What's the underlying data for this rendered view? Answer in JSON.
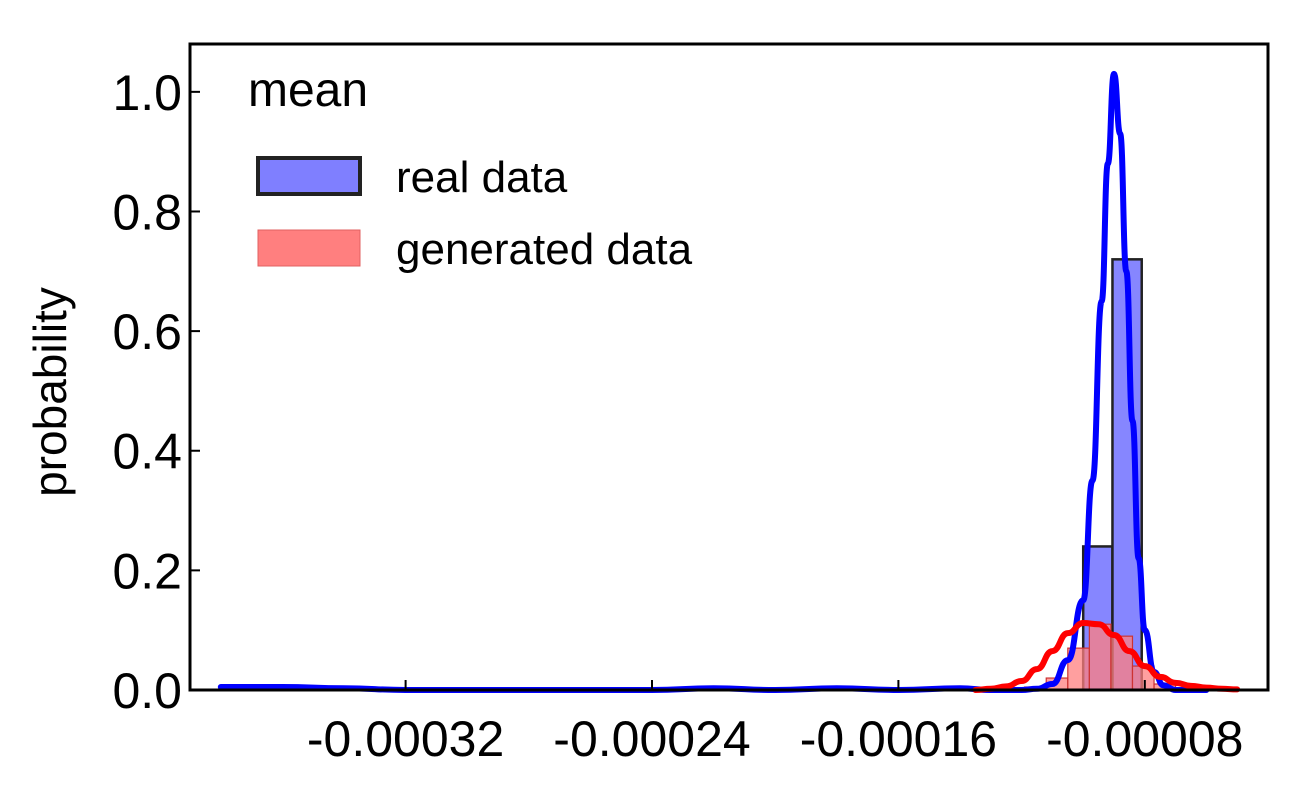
{
  "chart_data": {
    "type": "bar",
    "title": "",
    "xlabel": "",
    "ylabel": "probability",
    "xlim": [
      -0.00039,
      -4e-05
    ],
    "ylim": [
      0,
      1.08
    ],
    "xticks": [
      -0.00032,
      -0.00024,
      -0.00016,
      -8e-05
    ],
    "xtick_labels": [
      "-0.00032",
      "-0.00024",
      "-0.00016",
      "-0.00008"
    ],
    "yticks": [
      0.0,
      0.2,
      0.4,
      0.6,
      0.8,
      1.0
    ],
    "ytick_labels": [
      "0.0",
      "0.2",
      "0.4",
      "0.6",
      "0.8",
      "1.0"
    ],
    "grid": false,
    "legend": {
      "title": "mean",
      "placement": "top-left",
      "entries": [
        "real data",
        "generated data"
      ]
    },
    "bin_width": 9.5e-06,
    "series": [
      {
        "name": "real data",
        "kind": "histogram",
        "color": "#7f7fff",
        "edge": "#222222",
        "bins": [
          {
            "x0": -0.0001,
            "x1": -9.05e-05,
            "value": 0.24
          },
          {
            "x0": -9.05e-05,
            "x1": -8.1e-05,
            "value": 0.72
          }
        ]
      },
      {
        "name": "generated data",
        "kind": "histogram",
        "color": "#ff7f7f",
        "edge": "#cc3333",
        "bins": [
          {
            "x0": -0.000119,
            "x1": -0.000112,
            "value": 0.005
          },
          {
            "x0": -0.000112,
            "x1": -0.000105,
            "value": 0.02
          },
          {
            "x0": -0.000105,
            "x1": -9.8e-05,
            "value": 0.07
          },
          {
            "x0": -9.8e-05,
            "x1": -9.1e-05,
            "value": 0.11
          },
          {
            "x0": -9.1e-05,
            "x1": -8.4e-05,
            "value": 0.09
          },
          {
            "x0": -8.4e-05,
            "x1": -7.7e-05,
            "value": 0.04
          },
          {
            "x0": -7.7e-05,
            "x1": -7e-05,
            "value": 0.01
          }
        ]
      }
    ],
    "kde": [
      {
        "name": "real data",
        "color": "#0000ff",
        "x": [
          -0.00038,
          -0.00036,
          -0.00034,
          -0.00032,
          -0.0003,
          -0.00028,
          -0.00026,
          -0.00024,
          -0.00022,
          -0.0002,
          -0.00018,
          -0.00016,
          -0.00014,
          -0.00013,
          -0.00012,
          -0.000115,
          -0.00011,
          -0.000105,
          -0.0001,
          -9.7e-05,
          -9.4e-05,
          -9.2e-05,
          -9e-05,
          -8.8e-05,
          -8.6e-05,
          -8.4e-05,
          -8.2e-05,
          -8e-05,
          -7.7e-05,
          -7.4e-05,
          -7e-05,
          -6.5e-05,
          -6e-05
        ],
        "y": [
          0.005,
          0.005,
          0.003,
          0.0,
          0.0,
          0.0,
          0.0,
          0.0,
          0.003,
          0.0,
          0.003,
          0.0,
          0.003,
          0.0,
          0.0,
          0.002,
          0.01,
          0.05,
          0.15,
          0.35,
          0.65,
          0.88,
          1.03,
          0.93,
          0.7,
          0.45,
          0.22,
          0.1,
          0.03,
          0.008,
          0.0,
          0.0,
          0.0
        ]
      },
      {
        "name": "generated data",
        "color": "#ff0000",
        "x": [
          -0.000135,
          -0.00013,
          -0.000125,
          -0.00012,
          -0.000115,
          -0.00011,
          -0.000105,
          -0.0001,
          -9.5e-05,
          -9e-05,
          -8.5e-05,
          -8e-05,
          -7.5e-05,
          -7e-05,
          -6.5e-05,
          -6e-05,
          -5.5e-05,
          -5e-05
        ],
        "y": [
          0.0,
          0.002,
          0.006,
          0.015,
          0.035,
          0.065,
          0.095,
          0.112,
          0.11,
          0.092,
          0.065,
          0.04,
          0.022,
          0.012,
          0.007,
          0.004,
          0.002,
          0.001
        ]
      }
    ]
  }
}
